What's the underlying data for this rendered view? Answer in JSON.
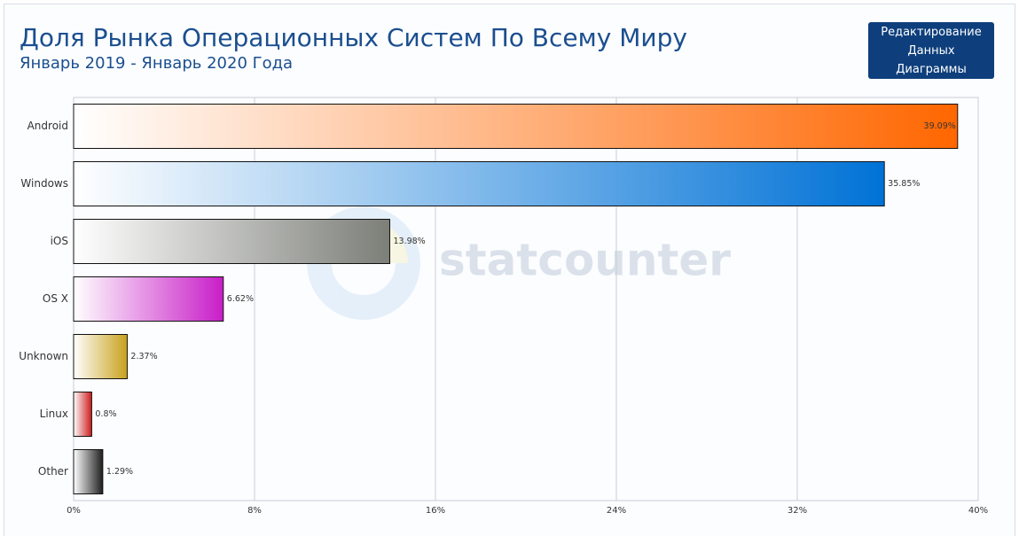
{
  "chart_data": {
    "type": "bar",
    "orientation": "horizontal",
    "title": "Доля Рынка Операционных Систем По Всему Миру",
    "subtitle": "Январь 2019 - Январь 2020 Года",
    "edit_button": "Редактирование Данных Диаграммы",
    "watermark": "statcounter",
    "categories": [
      "Android",
      "Windows",
      "iOS",
      "OS X",
      "Unknown",
      "Linux",
      "Other"
    ],
    "values": [
      39.09,
      35.85,
      13.98,
      6.62,
      2.37,
      0.8,
      1.29
    ],
    "value_labels": [
      "39.09%",
      "35.85%",
      "13.98%",
      "6.62%",
      "2.37%",
      "0.8%",
      "1.29%"
    ],
    "colors": [
      "#ff6600",
      "#0072d6",
      "#7c7e78",
      "#c81ec8",
      "#c9a11c",
      "#cc1a1a",
      "#1e1e1e"
    ],
    "xlim": [
      0,
      40
    ],
    "xticks": [
      {
        "value": 0,
        "label": "0%"
      },
      {
        "value": 8,
        "label": "8%"
      },
      {
        "value": 16,
        "label": "16%"
      },
      {
        "value": 24,
        "label": "24%"
      },
      {
        "value": 32,
        "label": "32%"
      },
      {
        "value": 40,
        "label": "40%"
      }
    ],
    "grid": true
  }
}
